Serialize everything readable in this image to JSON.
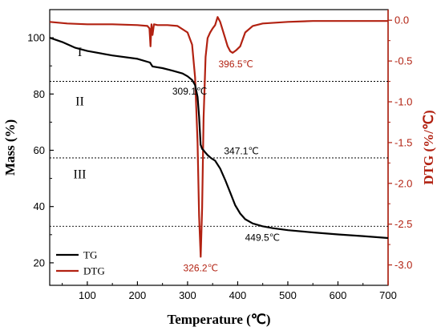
{
  "chart_data": {
    "type": "line",
    "xlabel": "Temperature (℃)",
    "ylabel_left": "Mass (%)",
    "ylabel_right": "DTG (%/℃)",
    "xlim": [
      25,
      700
    ],
    "ylim_left": [
      12,
      110
    ],
    "ylim_right": [
      -3.25,
      0.13
    ],
    "x_ticks": [
      100,
      200,
      300,
      400,
      500,
      600,
      700
    ],
    "y_left_ticks": [
      20,
      40,
      60,
      80,
      100
    ],
    "y_right_ticks": [
      0.0,
      -0.5,
      -1.0,
      -1.5,
      -2.0,
      -2.5,
      -3.0
    ],
    "tick_labels": {
      "x": [
        "100",
        "200",
        "300",
        "400",
        "500",
        "600",
        "700"
      ],
      "y_left": [
        "20",
        "40",
        "60",
        "80",
        "100"
      ],
      "y_right": [
        "0.0",
        "-0.5",
        "-1.0",
        "-1.5",
        "-2.0",
        "-2.5",
        "-3.0"
      ]
    },
    "series": [
      {
        "name": "TG",
        "axis": "left",
        "color": "#000000",
        "x": [
          25,
          50,
          75,
          100,
          150,
          200,
          225,
          230,
          250,
          270,
          290,
          300,
          309,
          315,
          320,
          323,
          326,
          329,
          332,
          335,
          340,
          347,
          355,
          365,
          375,
          385,
          395,
          405,
          415,
          430,
          449.5,
          470,
          500,
          550,
          600,
          650,
          700
        ],
        "y": [
          100,
          98.5,
          96.5,
          95.3,
          93.7,
          92.5,
          91.2,
          89.8,
          89.2,
          88.3,
          87.3,
          86.3,
          85.0,
          83.2,
          79.0,
          72.0,
          62.0,
          60.5,
          60.0,
          59.3,
          58.3,
          57.2,
          56.3,
          53.5,
          49.5,
          45.0,
          40.5,
          37.5,
          35.5,
          34.0,
          33.0,
          32.3,
          31.6,
          30.8,
          30.1,
          29.5,
          28.8
        ]
      },
      {
        "name": "DTG",
        "axis": "right",
        "color": "#b22212",
        "x": [
          25,
          60,
          100,
          150,
          200,
          220,
          224,
          226,
          228,
          230,
          233,
          240,
          260,
          280,
          300,
          309,
          315,
          320,
          323,
          326.2,
          329,
          332,
          336,
          340,
          345,
          350,
          355,
          360,
          365,
          370,
          375,
          380,
          385,
          390,
          396.5,
          405,
          415,
          430,
          450,
          500,
          550,
          600,
          650,
          700
        ],
        "y": [
          -0.02,
          -0.04,
          -0.05,
          -0.05,
          -0.06,
          -0.07,
          -0.1,
          -0.32,
          -0.05,
          -0.18,
          -0.05,
          -0.06,
          -0.06,
          -0.07,
          -0.15,
          -0.3,
          -0.7,
          -1.5,
          -2.4,
          -2.9,
          -2.3,
          -1.2,
          -0.45,
          -0.22,
          -0.15,
          -0.1,
          -0.06,
          0.04,
          -0.02,
          -0.12,
          -0.22,
          -0.32,
          -0.38,
          -0.4,
          -0.37,
          -0.32,
          -0.15,
          -0.07,
          -0.04,
          -0.02,
          -0.01,
          -0.01,
          -0.01,
          -0.01
        ]
      }
    ],
    "reference_lines_left": [
      84.5,
      57.3,
      33.0
    ],
    "region_labels": [
      {
        "text": "I",
        "x": 85,
        "y": 93.5
      },
      {
        "text": "II",
        "x": 85,
        "y": 76
      },
      {
        "text": "III",
        "x": 85,
        "y": 50
      }
    ],
    "annotations": [
      {
        "text": "309.1℃",
        "x": 309.1,
        "axis": "left",
        "y": 85.0
      },
      {
        "text": "347.1℃",
        "x": 347.1,
        "axis": "left",
        "y": 57.2
      },
      {
        "text": "449.5℃",
        "x": 449.5,
        "axis": "left",
        "y": 33.0
      },
      {
        "text": "326.2℃",
        "x": 326.2,
        "axis": "right",
        "y": -2.9
      },
      {
        "text": "396.5℃",
        "x": 396.5,
        "axis": "right",
        "y": -0.4
      }
    ],
    "legend": {
      "placement": "bottom-left",
      "entries": [
        "TG",
        "DTG"
      ]
    },
    "grid": false,
    "colors": {
      "tg": "#000000",
      "dtg": "#b22212",
      "right_axis": "#b22212"
    }
  }
}
